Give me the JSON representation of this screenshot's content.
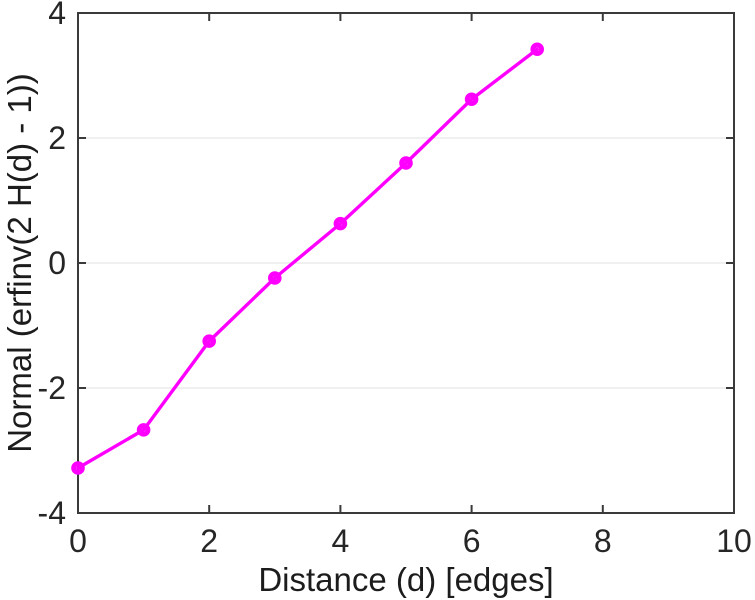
{
  "chart_data": {
    "type": "line",
    "title": "",
    "xlabel": "Distance (d) [edges]",
    "ylabel": "Normal (erfinv(2 H(d) - 1))",
    "x": [
      0,
      1,
      2,
      3,
      4,
      5,
      6,
      7
    ],
    "y": [
      -3.28,
      -2.67,
      -1.25,
      -0.24,
      0.63,
      1.6,
      2.62,
      3.42
    ],
    "xlim": [
      0,
      10
    ],
    "ylim": [
      -4,
      4
    ],
    "xticks": [
      0,
      2,
      4,
      6,
      8,
      10
    ],
    "xtick_labels": [
      "0",
      "2",
      "4",
      "6",
      "8",
      "10"
    ],
    "yticks": [
      -4,
      -2,
      0,
      2,
      4
    ],
    "ytick_labels": [
      "-4",
      "-2",
      "0",
      "2",
      "4"
    ],
    "grid": "horizontal-only",
    "box": true,
    "legend": "none",
    "line_color": "#ff00ff",
    "marker": "open-circle"
  },
  "style": {
    "background": "#ffffff",
    "axis_color": "#3a3a3a",
    "grid_color": "#ebebeb",
    "tick_label_color": "#262626",
    "axis_label_color": "#1c1c1c"
  }
}
